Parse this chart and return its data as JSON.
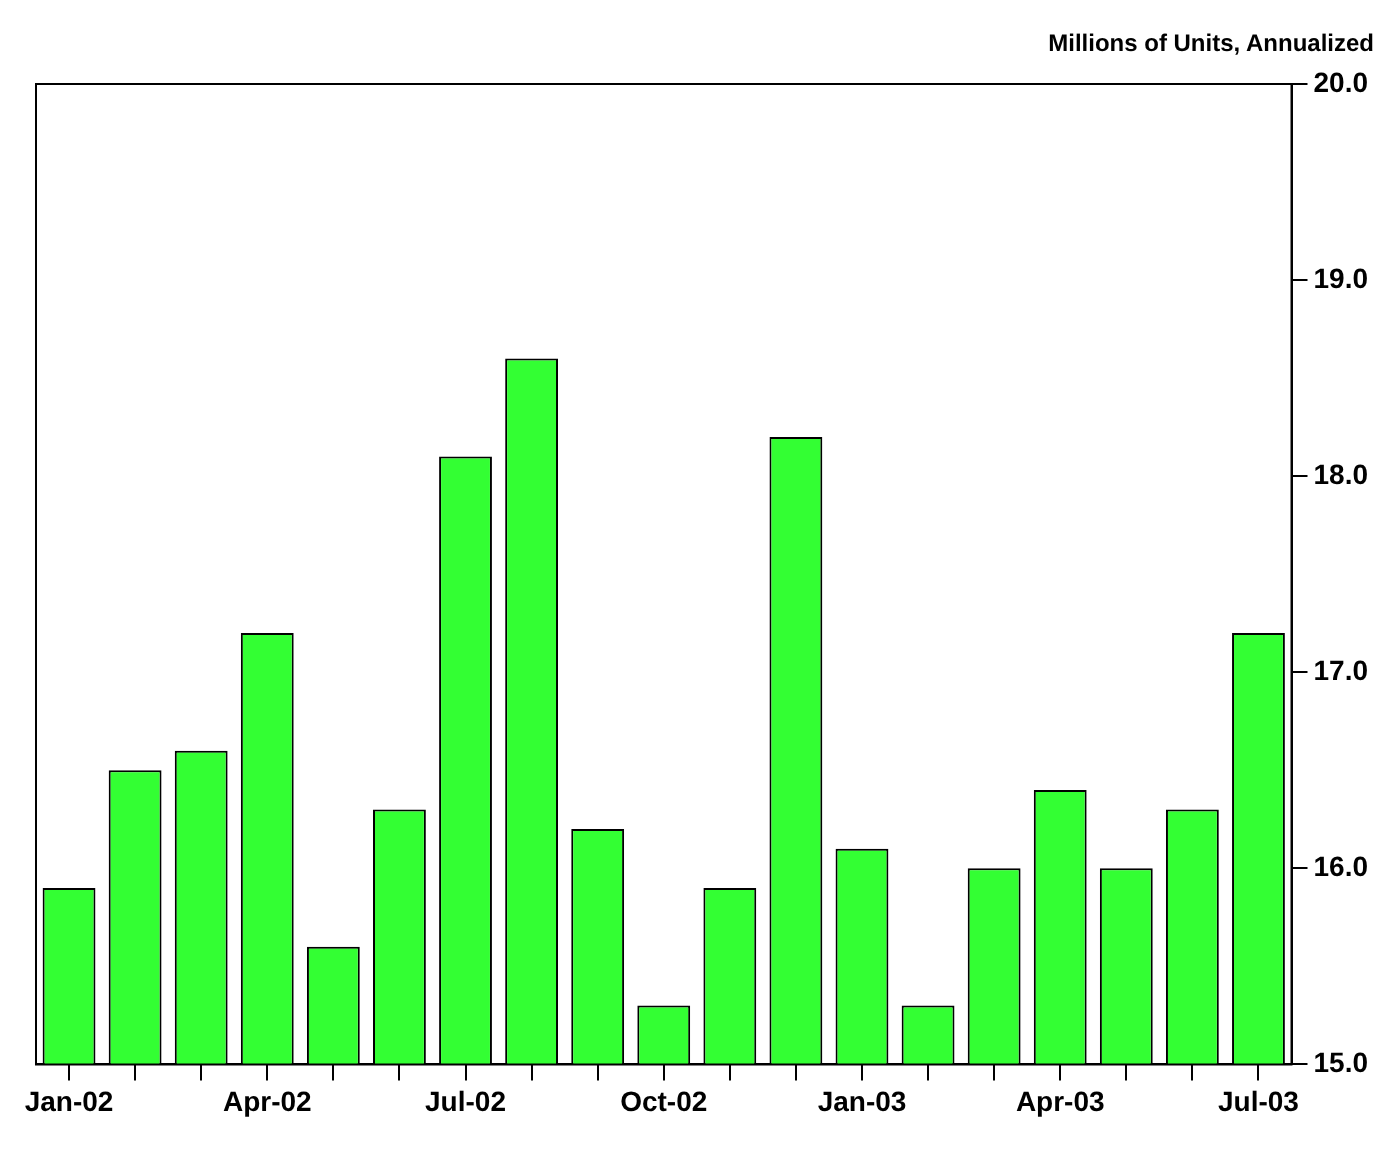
{
  "chart_data": {
    "type": "bar",
    "ylabel": "Millions of Units, Annualized",
    "categories": [
      "Jan-02",
      null,
      null,
      "Apr-02",
      null,
      null,
      "Jul-02",
      null,
      null,
      "Oct-02",
      null,
      null,
      "Jan-03",
      null,
      null,
      "Apr-03",
      null,
      null,
      "Jul-03"
    ],
    "values": [
      15.9,
      16.5,
      16.6,
      17.2,
      15.6,
      16.3,
      18.1,
      18.6,
      16.2,
      15.3,
      15.9,
      18.2,
      16.1,
      15.3,
      16.0,
      16.4,
      16.0,
      16.3,
      17.2
    ],
    "color": "#33ff33",
    "ylim": [
      15,
      20
    ],
    "yticks": [
      {
        "value": 15,
        "label": "15.0"
      },
      {
        "value": 16,
        "label": "16.0"
      },
      {
        "value": 17,
        "label": "17.0"
      },
      {
        "value": 18,
        "label": "18.0"
      },
      {
        "value": 19,
        "label": "19.0"
      },
      {
        "value": 20,
        "label": "20.0"
      }
    ],
    "grid": false,
    "legend": false
  }
}
